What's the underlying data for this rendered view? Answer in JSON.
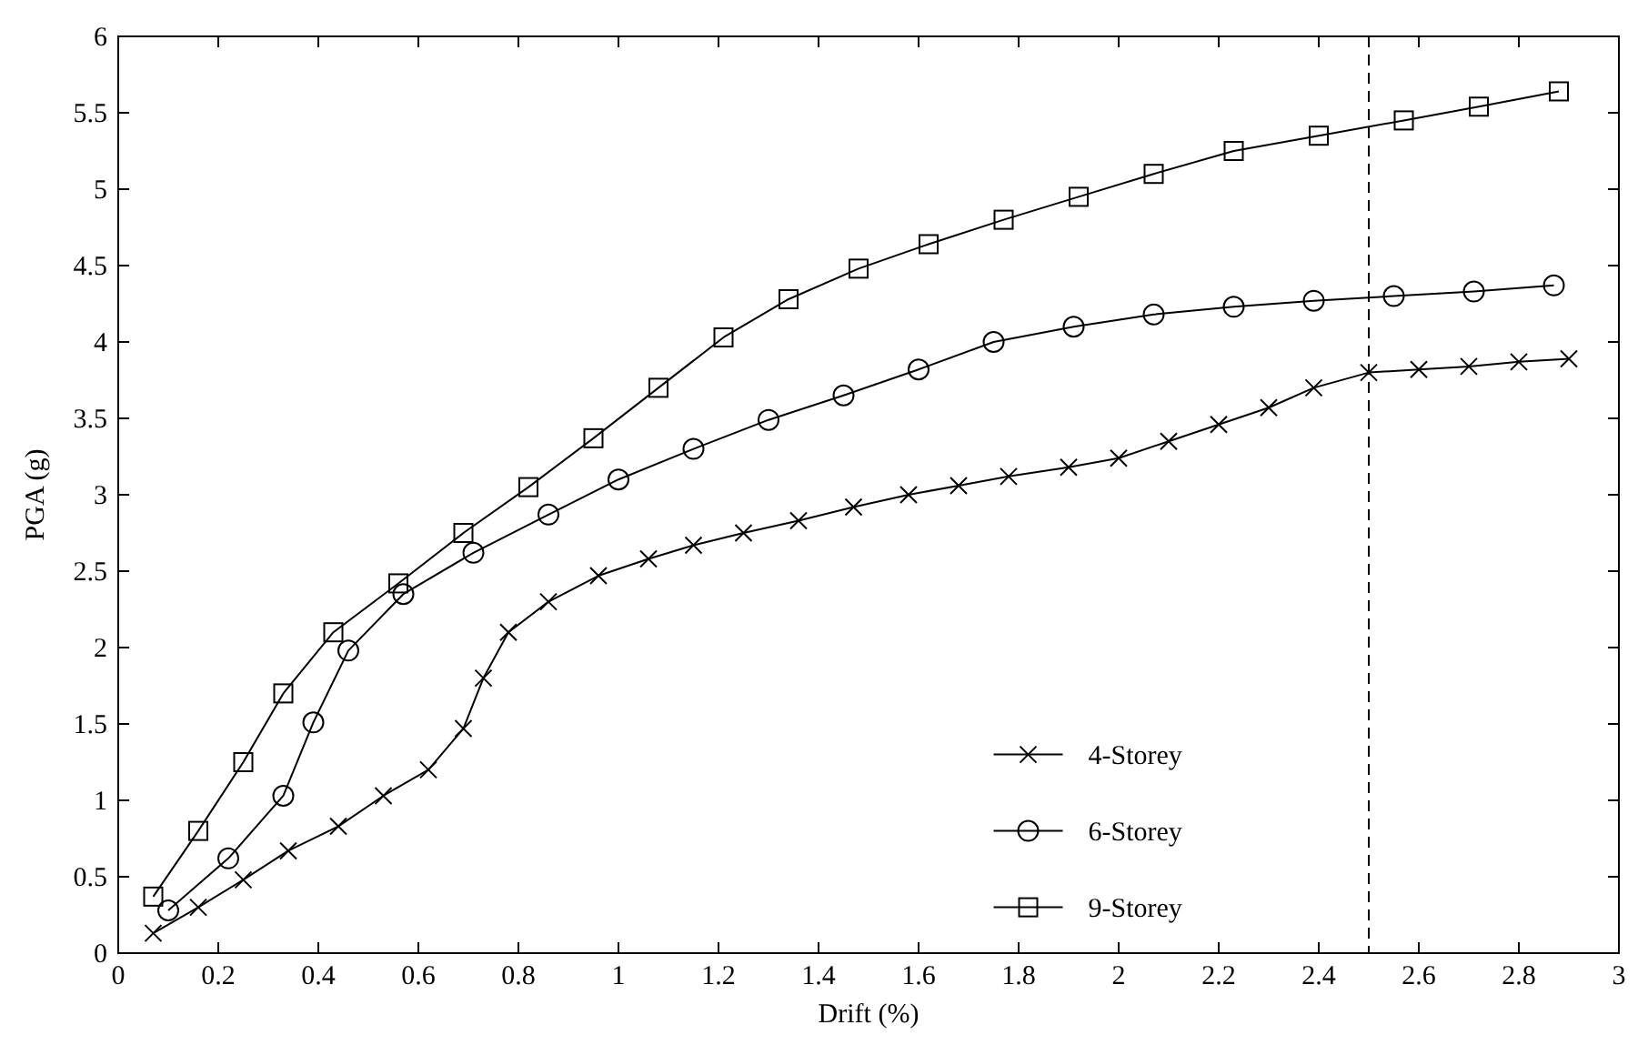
{
  "chart_data": {
    "type": "line",
    "xlabel": "Drift (%)",
    "ylabel": "PGA (g)",
    "xlim": [
      0,
      3
    ],
    "ylim": [
      0,
      6
    ],
    "xticks": [
      0,
      0.2,
      0.4,
      0.6,
      0.8,
      1,
      1.2,
      1.4,
      1.6,
      1.8,
      2,
      2.2,
      2.4,
      2.6,
      2.8,
      3
    ],
    "yticks": [
      0,
      0.5,
      1,
      1.5,
      2,
      2.5,
      3,
      3.5,
      4,
      4.5,
      5,
      5.5,
      6
    ],
    "grid": false,
    "legend": "bottom right",
    "line_style": "solid",
    "ref_lines": [
      {
        "axis": "x",
        "value": 2.5,
        "line_style": "dashed",
        "color": "#000000"
      }
    ],
    "series": [
      {
        "name": "4-Storey",
        "color": "#000000",
        "marker": "cross",
        "x": [
          0.07,
          0.16,
          0.25,
          0.34,
          0.44,
          0.53,
          0.62,
          0.69,
          0.73,
          0.78,
          0.86,
          0.96,
          1.06,
          1.15,
          1.25,
          1.36,
          1.47,
          1.58,
          1.68,
          1.78,
          1.9,
          2.0,
          2.1,
          2.2,
          2.3,
          2.39,
          2.5,
          2.6,
          2.7,
          2.8,
          2.9
        ],
        "values": [
          0.13,
          0.3,
          0.48,
          0.67,
          0.83,
          1.03,
          1.2,
          1.47,
          1.8,
          2.1,
          2.3,
          2.47,
          2.58,
          2.67,
          2.75,
          2.83,
          2.92,
          3.0,
          3.06,
          3.12,
          3.18,
          3.24,
          3.35,
          3.46,
          3.57,
          3.7,
          3.8,
          3.82,
          3.84,
          3.87,
          3.89
        ]
      },
      {
        "name": "6-Storey",
        "color": "#000000",
        "marker": "circle",
        "x": [
          0.1,
          0.22,
          0.33,
          0.39,
          0.46,
          0.57,
          0.71,
          0.86,
          1.0,
          1.15,
          1.3,
          1.45,
          1.6,
          1.75,
          1.91,
          2.07,
          2.23,
          2.39,
          2.55,
          2.71,
          2.87
        ],
        "values": [
          0.28,
          0.62,
          1.03,
          1.51,
          1.98,
          2.35,
          2.62,
          2.87,
          3.1,
          3.3,
          3.49,
          3.65,
          3.82,
          4.0,
          4.1,
          4.18,
          4.23,
          4.27,
          4.3,
          4.33,
          4.37
        ]
      },
      {
        "name": "9-Storey",
        "color": "#000000",
        "marker": "square",
        "x": [
          0.07,
          0.16,
          0.25,
          0.33,
          0.43,
          0.56,
          0.69,
          0.82,
          0.95,
          1.08,
          1.21,
          1.34,
          1.48,
          1.62,
          1.77,
          1.92,
          2.07,
          2.23,
          2.4,
          2.57,
          2.72,
          2.88
        ],
        "values": [
          0.37,
          0.8,
          1.25,
          1.7,
          2.1,
          2.42,
          2.75,
          3.05,
          3.37,
          3.7,
          4.03,
          4.28,
          4.48,
          4.64,
          4.8,
          4.95,
          5.1,
          5.25,
          5.35,
          5.45,
          5.54,
          5.64
        ]
      }
    ]
  }
}
